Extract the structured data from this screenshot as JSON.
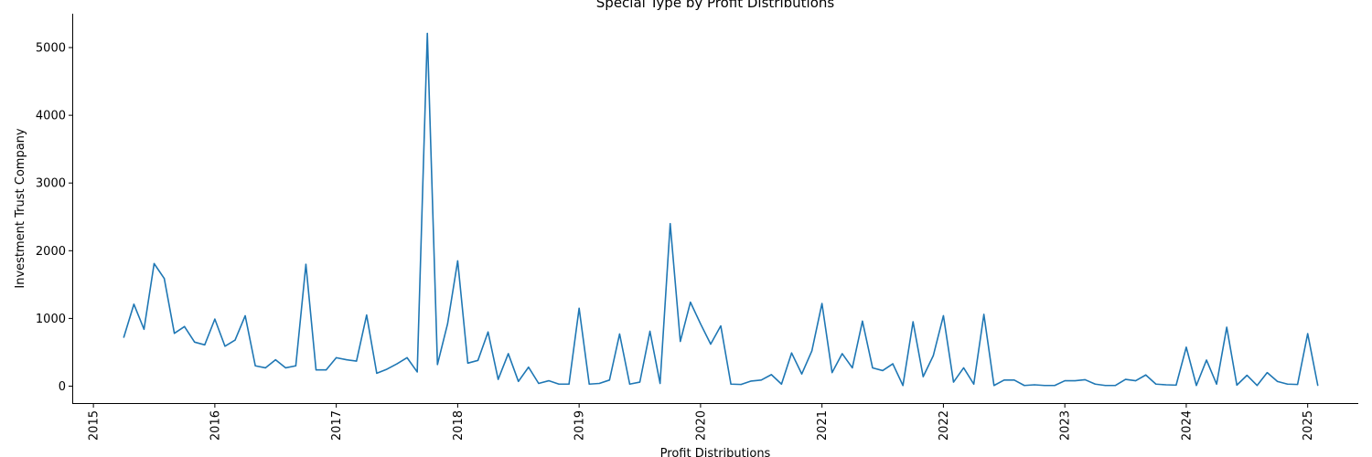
{
  "chart_data": {
    "type": "line",
    "title": "Special Type by Profit Distributions",
    "xlabel": "Profit Distributions",
    "ylabel": "Investment Trust Company",
    "xlim": [
      "2014-11-01",
      "2025-06-01"
    ],
    "ylim": [
      -250,
      5500
    ],
    "x_ticks": [
      "2015",
      "2016",
      "2017",
      "2018",
      "2019",
      "2020",
      "2021",
      "2022",
      "2023",
      "2024",
      "2025"
    ],
    "y_ticks": [
      0,
      1000,
      2000,
      3000,
      4000,
      5000
    ],
    "grid": false,
    "color": "#1f77b4",
    "series": [
      {
        "x": [
          "2015-04",
          "2015-05",
          "2015-06",
          "2015-07",
          "2015-08",
          "2015-09",
          "2015-10",
          "2015-11",
          "2015-12",
          "2016-01",
          "2016-02",
          "2016-03",
          "2016-04",
          "2016-05",
          "2016-06",
          "2016-07",
          "2016-08",
          "2016-09",
          "2016-10",
          "2016-11",
          "2016-12",
          "2017-01",
          "2017-02",
          "2017-03",
          "2017-04",
          "2017-05",
          "2017-06",
          "2017-07",
          "2017-08",
          "2017-09",
          "2017-10",
          "2017-11",
          "2017-12",
          "2018-01",
          "2018-02",
          "2018-03",
          "2018-04",
          "2018-05",
          "2018-06",
          "2018-07",
          "2018-08",
          "2018-09",
          "2018-10",
          "2018-11",
          "2018-12",
          "2019-01",
          "2019-02",
          "2019-03",
          "2019-04",
          "2019-05",
          "2019-06",
          "2019-07",
          "2019-08",
          "2019-09",
          "2019-10",
          "2019-11",
          "2019-12",
          "2020-01",
          "2020-02",
          "2020-03",
          "2020-04",
          "2020-05",
          "2020-06",
          "2020-07",
          "2020-08",
          "2020-09",
          "2020-10",
          "2020-11",
          "2020-12",
          "2021-01",
          "2021-02",
          "2021-03",
          "2021-04",
          "2021-05",
          "2021-06",
          "2021-07",
          "2021-08",
          "2021-09",
          "2021-10",
          "2021-11",
          "2021-12",
          "2022-01",
          "2022-02",
          "2022-03",
          "2022-04",
          "2022-05",
          "2022-06",
          "2022-07",
          "2022-08",
          "2022-09",
          "2022-10",
          "2022-11",
          "2022-12",
          "2023-01",
          "2023-02",
          "2023-03",
          "2023-04",
          "2023-05",
          "2023-06",
          "2023-07",
          "2023-08",
          "2023-09",
          "2023-10",
          "2023-11",
          "2023-12",
          "2024-01",
          "2024-02",
          "2024-03",
          "2024-04",
          "2024-05",
          "2024-06",
          "2024-07",
          "2024-08",
          "2024-09",
          "2024-10",
          "2024-11",
          "2024-12",
          "2025-01",
          "2025-02"
        ],
        "y": [
          720,
          1210,
          840,
          1810,
          1590,
          780,
          880,
          650,
          610,
          990,
          590,
          680,
          1040,
          300,
          270,
          390,
          270,
          300,
          1800,
          240,
          240,
          420,
          390,
          370,
          1050,
          190,
          250,
          330,
          420,
          210,
          5210,
          320,
          920,
          1850,
          340,
          380,
          800,
          100,
          480,
          70,
          280,
          40,
          80,
          30,
          30,
          1150,
          30,
          40,
          90,
          770,
          30,
          60,
          810,
          40,
          2400,
          660,
          1240,
          920,
          620,
          890,
          30,
          25,
          75,
          90,
          170,
          30,
          490,
          180,
          520,
          1220,
          200,
          480,
          270,
          960,
          270,
          230,
          330,
          10,
          950,
          140,
          450,
          1040,
          60,
          270,
          30,
          1060,
          10,
          90,
          90,
          10,
          20,
          10,
          10,
          80,
          80,
          95,
          30,
          10,
          10,
          100,
          80,
          165,
          30,
          20,
          15,
          575,
          10,
          385,
          30,
          870,
          15,
          160,
          10,
          200,
          70,
          30,
          25,
          775,
          10
        ]
      }
    ]
  }
}
